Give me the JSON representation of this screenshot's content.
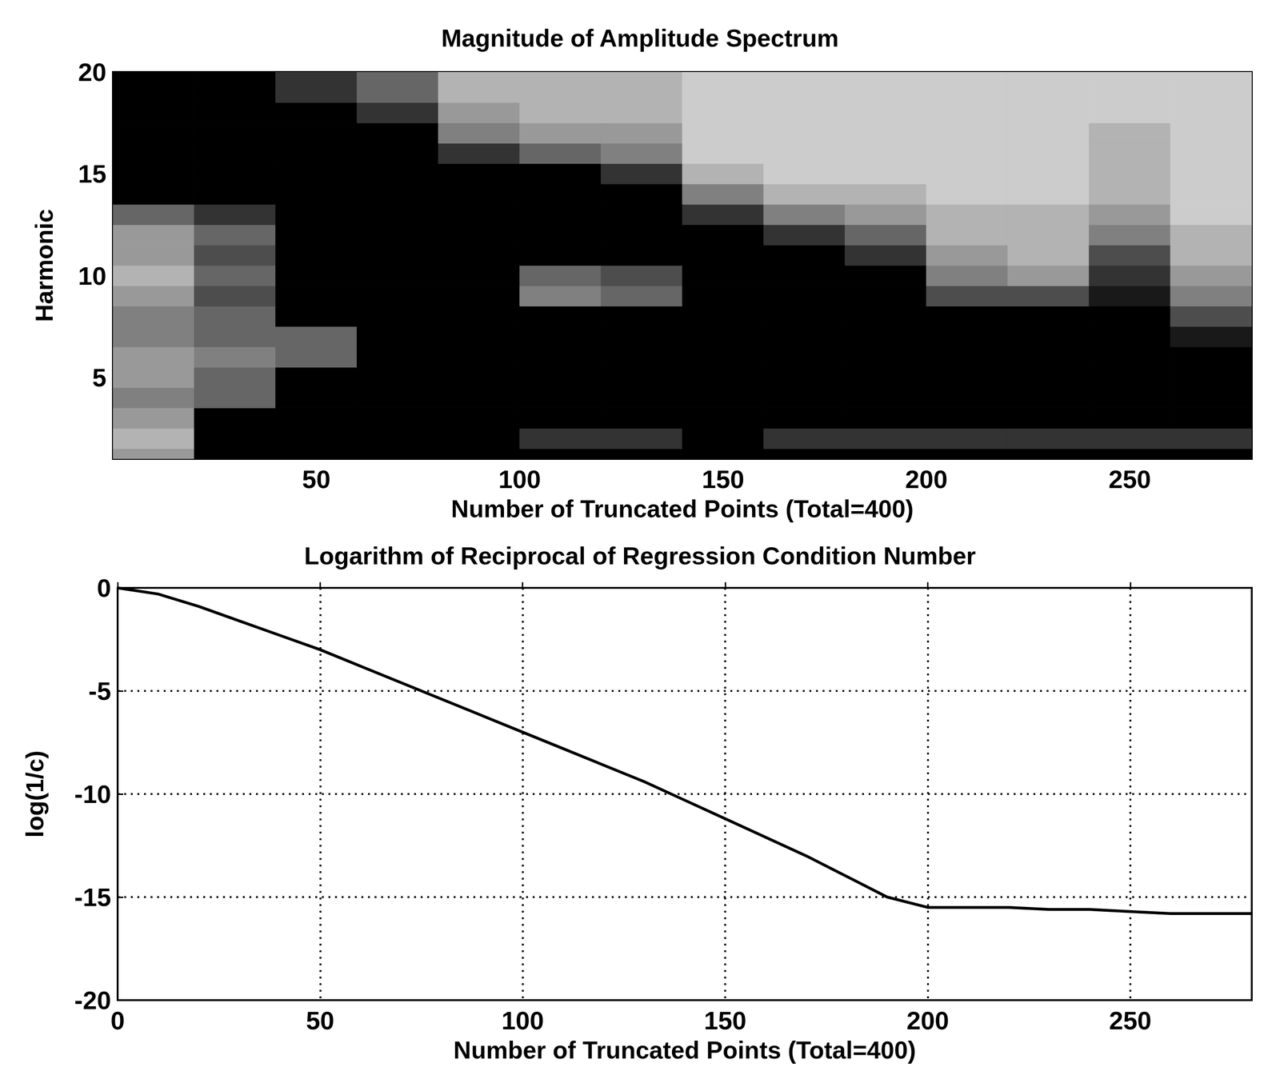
{
  "chart_data": [
    {
      "type": "heatmap",
      "title": "Magnitude of Amplitude Spectrum",
      "x_label": "Number of Truncated Points (Total=400)",
      "y_label": "Harmonic",
      "x": [
        10,
        30,
        50,
        70,
        90,
        110,
        130,
        150,
        170,
        190,
        210,
        230,
        250,
        270
      ],
      "y": [
        1,
        2,
        3,
        4,
        5,
        6,
        7,
        8,
        9,
        10,
        11,
        12,
        13,
        14,
        15,
        16,
        17,
        18,
        19,
        20
      ],
      "cells": [
        [
          0.4,
          1,
          1,
          1,
          1,
          1,
          1,
          1,
          1,
          1,
          1,
          1,
          1,
          1
        ],
        [
          0.3,
          1,
          1,
          1,
          1,
          0.8,
          0.8,
          1,
          0.8,
          0.8,
          0.8,
          0.8,
          0.8,
          0.8
        ],
        [
          0.4,
          1,
          1,
          1,
          1,
          1,
          1,
          1,
          1,
          1,
          1,
          1,
          1,
          1
        ],
        [
          0.5,
          0.6,
          1,
          1,
          1,
          1,
          1,
          1,
          1,
          1,
          1,
          1,
          1,
          1
        ],
        [
          0.4,
          0.6,
          1,
          1,
          1,
          1,
          1,
          1,
          1,
          1,
          1,
          1,
          1,
          1
        ],
        [
          0.4,
          0.5,
          0.6,
          1,
          1,
          1,
          1,
          1,
          1,
          1,
          1,
          1,
          1,
          1
        ],
        [
          0.5,
          0.6,
          0.6,
          1,
          1,
          1,
          1,
          1,
          1,
          1,
          1,
          1,
          1,
          0.9
        ],
        [
          0.5,
          0.6,
          1,
          1,
          1,
          1,
          1,
          1,
          1,
          1,
          1,
          1,
          1,
          0.7
        ],
        [
          0.4,
          0.7,
          1,
          1,
          1,
          0.5,
          0.6,
          1,
          1,
          1,
          0.7,
          0.7,
          0.9,
          0.5
        ],
        [
          0.3,
          0.6,
          1,
          1,
          1,
          0.6,
          0.7,
          1,
          1,
          1,
          0.5,
          0.4,
          0.8,
          0.4
        ],
        [
          0.4,
          0.7,
          1,
          1,
          1,
          1,
          1,
          1,
          1,
          0.8,
          0.4,
          0.3,
          0.7,
          0.3
        ],
        [
          0.4,
          0.6,
          1,
          1,
          1,
          1,
          1,
          1,
          0.8,
          0.6,
          0.3,
          0.3,
          0.5,
          0.3
        ],
        [
          0.6,
          0.8,
          1,
          1,
          1,
          1,
          1,
          0.8,
          0.5,
          0.4,
          0.3,
          0.3,
          0.4,
          0.2
        ],
        [
          1,
          1,
          1,
          1,
          1,
          1,
          1,
          0.5,
          0.3,
          0.3,
          0.2,
          0.2,
          0.3,
          0.2
        ],
        [
          1,
          1,
          1,
          1,
          1,
          1,
          0.8,
          0.3,
          0.2,
          0.2,
          0.2,
          0.2,
          0.3,
          0.2
        ],
        [
          1,
          1,
          1,
          1,
          0.8,
          0.6,
          0.5,
          0.2,
          0.2,
          0.2,
          0.2,
          0.2,
          0.3,
          0.2
        ],
        [
          1,
          1,
          1,
          1,
          0.5,
          0.4,
          0.4,
          0.2,
          0.2,
          0.2,
          0.2,
          0.2,
          0.3,
          0.2
        ],
        [
          1,
          1,
          1,
          0.8,
          0.4,
          0.3,
          0.3,
          0.2,
          0.2,
          0.2,
          0.2,
          0.2,
          0.2,
          0.2
        ],
        [
          1,
          1,
          0.8,
          0.6,
          0.3,
          0.3,
          0.3,
          0.2,
          0.2,
          0.2,
          0.2,
          0.2,
          0.2,
          0.2
        ],
        [
          1,
          1,
          0.8,
          0.6,
          0.3,
          0.3,
          0.3,
          0.2,
          0.2,
          0.2,
          0.2,
          0.2,
          0.2,
          0.2
        ]
      ],
      "zlim": [
        0,
        1
      ],
      "xlim": [
        0,
        280
      ],
      "xticks": [
        50,
        100,
        150,
        200,
        250
      ],
      "ylim": [
        1,
        20
      ],
      "yticks": [
        5,
        10,
        15,
        20
      ],
      "grid": false
    },
    {
      "type": "line",
      "title": "Logarithm of Reciprocal of Regression Condition Number",
      "x_label": "Number of Truncated Points (Total=400)",
      "y_label": "log(1/c)",
      "x": [
        0,
        10,
        20,
        30,
        40,
        50,
        60,
        70,
        80,
        90,
        100,
        110,
        120,
        130,
        140,
        150,
        160,
        170,
        180,
        190,
        200,
        210,
        220,
        230,
        240,
        250,
        260,
        270,
        280
      ],
      "values": [
        0,
        -0.3,
        -0.9,
        -1.6,
        -2.3,
        -3.0,
        -3.8,
        -4.6,
        -5.4,
        -6.2,
        -7.0,
        -7.8,
        -8.6,
        -9.4,
        -10.3,
        -11.2,
        -12.1,
        -13.0,
        -14.0,
        -15.0,
        -15.5,
        -15.5,
        -15.5,
        -15.6,
        -15.6,
        -15.7,
        -15.8,
        -15.8,
        -15.8
      ],
      "color": "#000000",
      "xlim": [
        0,
        280
      ],
      "xticks": [
        0,
        50,
        100,
        150,
        200,
        250
      ],
      "ylim": [
        -20,
        0
      ],
      "yticks": [
        -20,
        -15,
        -10,
        -5,
        0
      ],
      "grid": true
    }
  ]
}
